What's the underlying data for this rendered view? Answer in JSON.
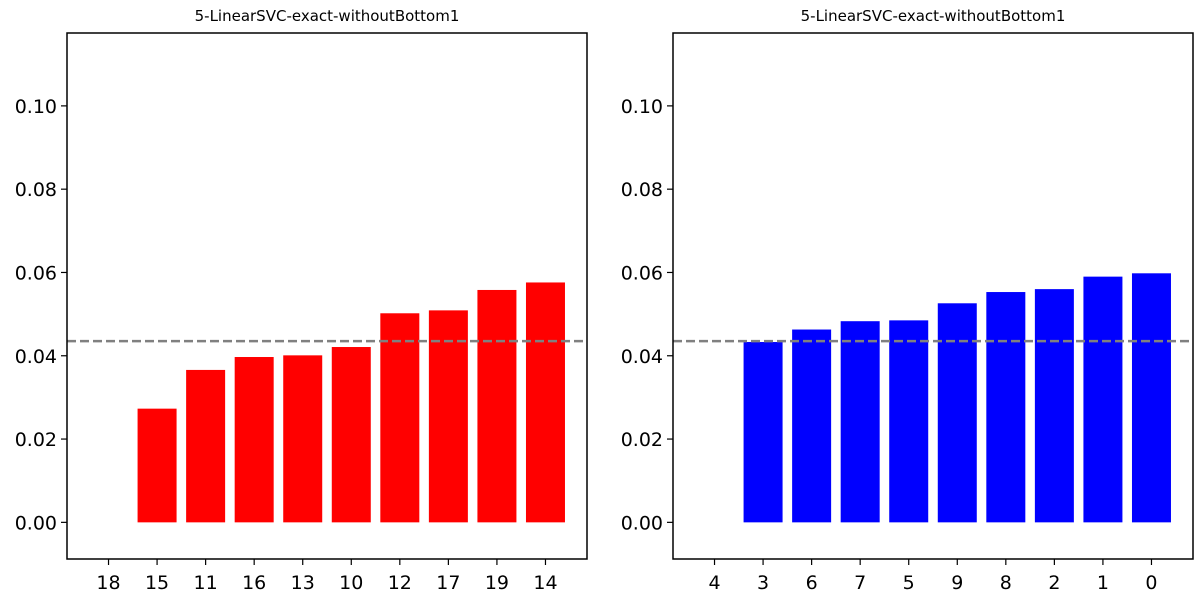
{
  "chart_data": [
    {
      "type": "bar",
      "title": "5-LinearSVC-exact-withoutBottom1",
      "xlabel": "",
      "ylabel": "",
      "categories": [
        "18",
        "15",
        "11",
        "16",
        "13",
        "10",
        "12",
        "17",
        "19",
        "14"
      ],
      "values": [
        0.0,
        0.0273,
        0.0366,
        0.0397,
        0.0401,
        0.0421,
        0.0502,
        0.0509,
        0.0558,
        0.0576
      ],
      "bar_color": "#ff0000",
      "reference_line": {
        "value": 0.0435,
        "style": "dashed",
        "color": "#808080"
      },
      "ylim": [
        -0.0088,
        0.1175
      ],
      "yticks": [
        0.0,
        0.02,
        0.04,
        0.06,
        0.08,
        0.1
      ],
      "ytick_labels": [
        "0.00",
        "0.02",
        "0.04",
        "0.06",
        "0.08",
        "0.10"
      ],
      "grid": false
    },
    {
      "type": "bar",
      "title": "5-LinearSVC-exact-withoutBottom1",
      "xlabel": "",
      "ylabel": "",
      "categories": [
        "4",
        "3",
        "6",
        "7",
        "5",
        "9",
        "8",
        "2",
        "1",
        "0"
      ],
      "values": [
        0.0,
        0.0433,
        0.0463,
        0.0483,
        0.0485,
        0.0526,
        0.0553,
        0.056,
        0.059,
        0.0598
      ],
      "bar_color": "#0000ff",
      "reference_line": {
        "value": 0.0435,
        "style": "dashed",
        "color": "#808080"
      },
      "ylim": [
        -0.0088,
        0.1175
      ],
      "yticks": [
        0.0,
        0.02,
        0.04,
        0.06,
        0.08,
        0.1
      ],
      "ytick_labels": [
        "0.00",
        "0.02",
        "0.04",
        "0.06",
        "0.08",
        "0.10"
      ],
      "grid": false
    }
  ]
}
